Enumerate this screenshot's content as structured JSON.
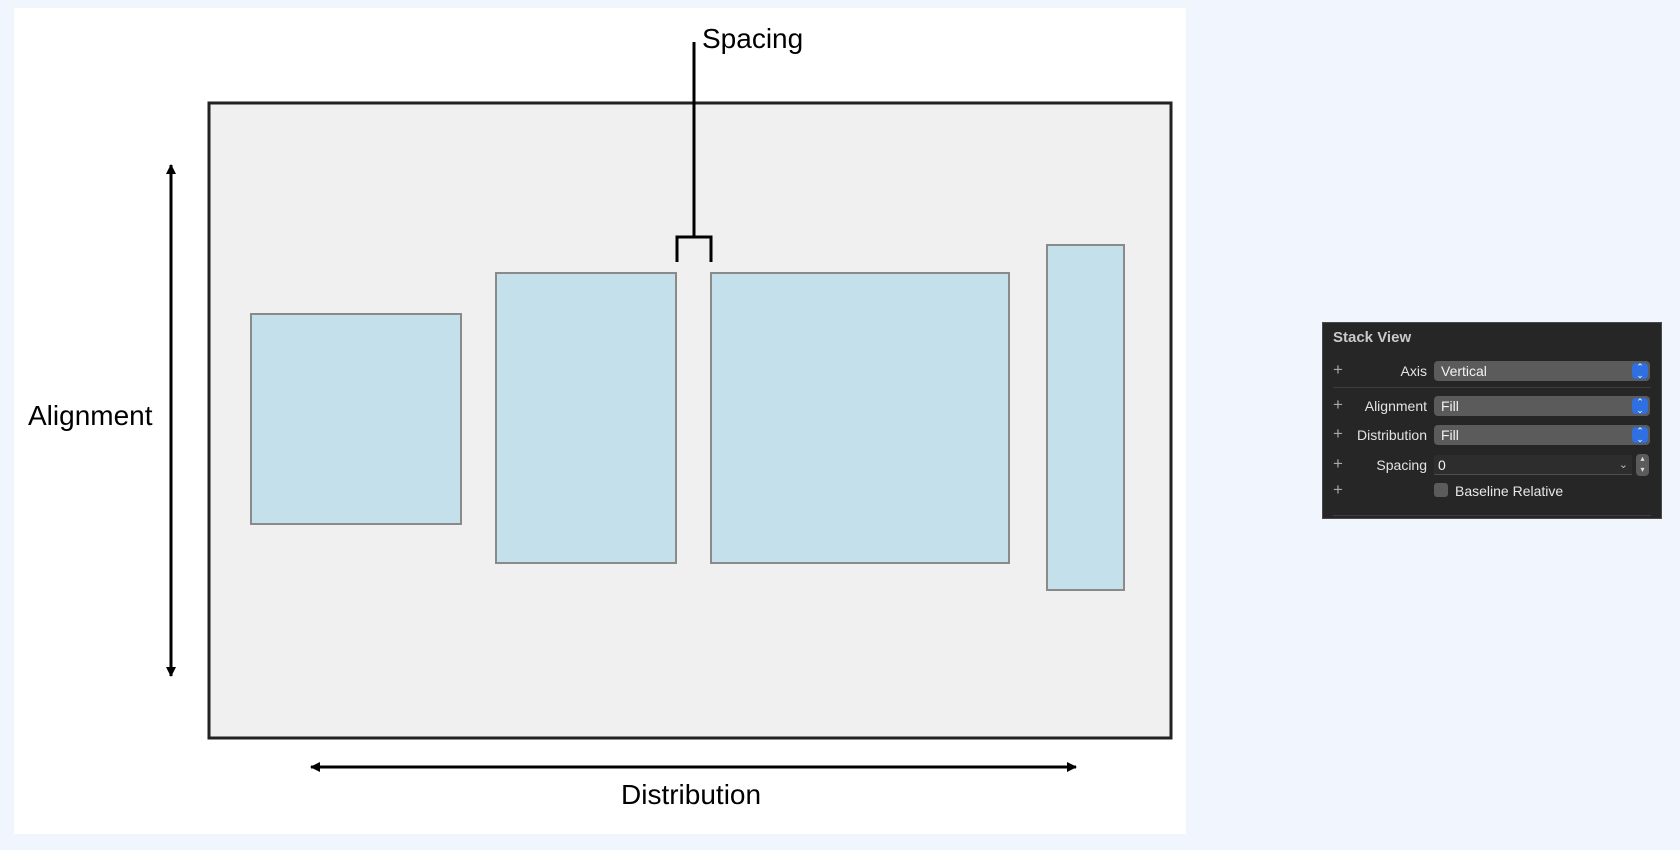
{
  "diagram": {
    "spacing_label": "Spacing",
    "alignment_label": "Alignment",
    "distribution_label": "Distribution",
    "colors": {
      "container_fill": "#f0f0f0",
      "container_stroke": "#222222",
      "view_fill": "#c4e0eb",
      "view_stroke": "#8a8a8a",
      "arrow": "#000000"
    }
  },
  "inspector": {
    "title": "Stack View",
    "axis": {
      "label": "Axis",
      "value": "Vertical"
    },
    "alignment": {
      "label": "Alignment",
      "value": "Fill"
    },
    "distribution": {
      "label": "Distribution",
      "value": "Fill"
    },
    "spacing": {
      "label": "Spacing",
      "value": "0"
    },
    "baseline": {
      "label": "Baseline Relative",
      "checked": false
    },
    "add_symbol": "+"
  }
}
